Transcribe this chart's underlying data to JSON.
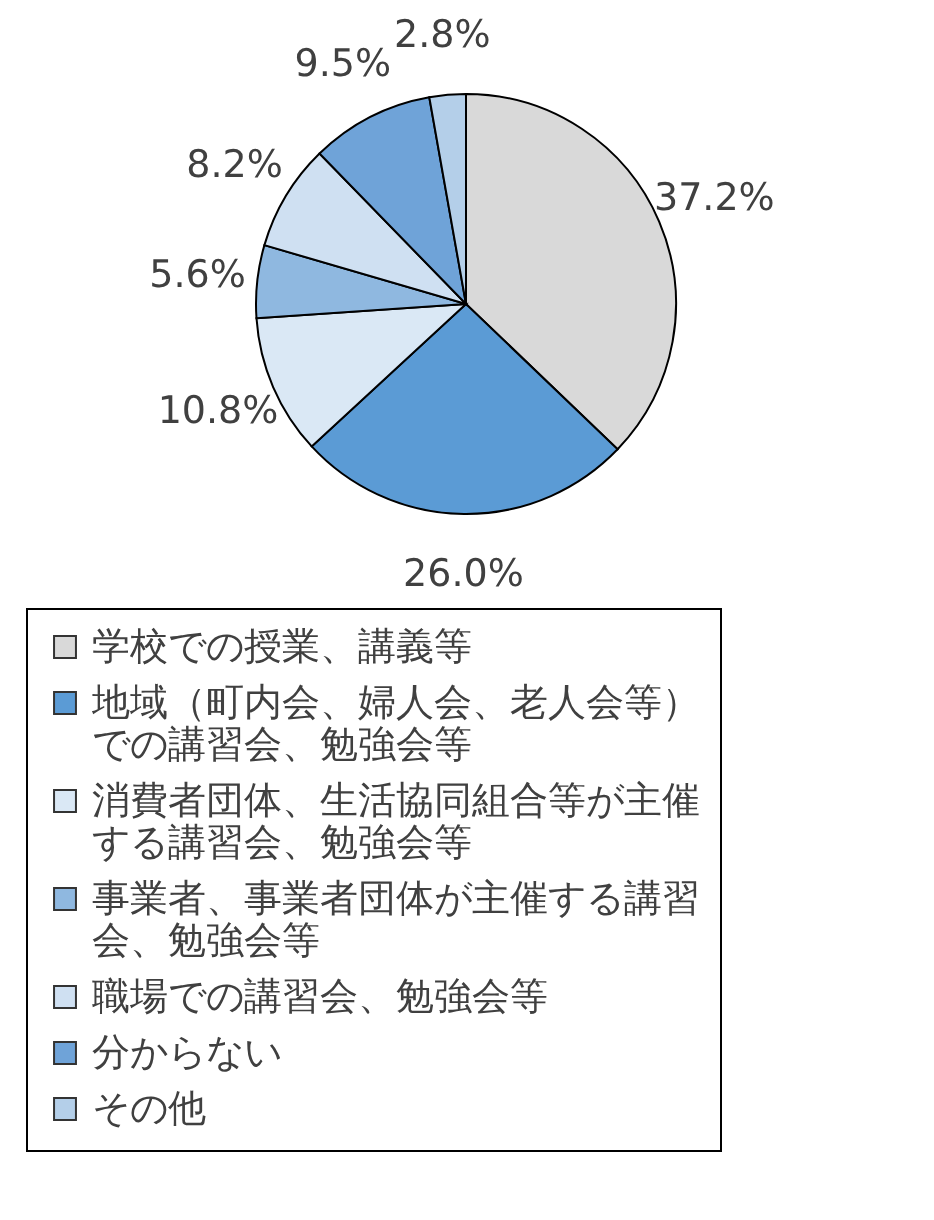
{
  "chart_data": {
    "type": "pie",
    "categories": [
      "学校での授業、講義等",
      "地域（町内会、婦人会、老人会等）での講習会、勉強会等",
      "消費者団体、生活協同組合等が主催する講習会、勉強会等",
      "事業者、事業者団体が主催する講習会、勉強会等",
      "職場での講習会、勉強会等",
      "分からない",
      "その他"
    ],
    "values": [
      37.2,
      26.0,
      10.8,
      5.6,
      8.2,
      9.5,
      2.8
    ],
    "value_labels": [
      "37.2%",
      "26.0%",
      "10.8%",
      "5.6%",
      "8.2%",
      "9.5%",
      "2.8%"
    ],
    "colors": [
      "#d9d9d9",
      "#5b9bd5",
      "#dae8f5",
      "#8fb8e0",
      "#cfe0f2",
      "#6fa3d8",
      "#b4cfe9"
    ],
    "legend": "bottom"
  }
}
